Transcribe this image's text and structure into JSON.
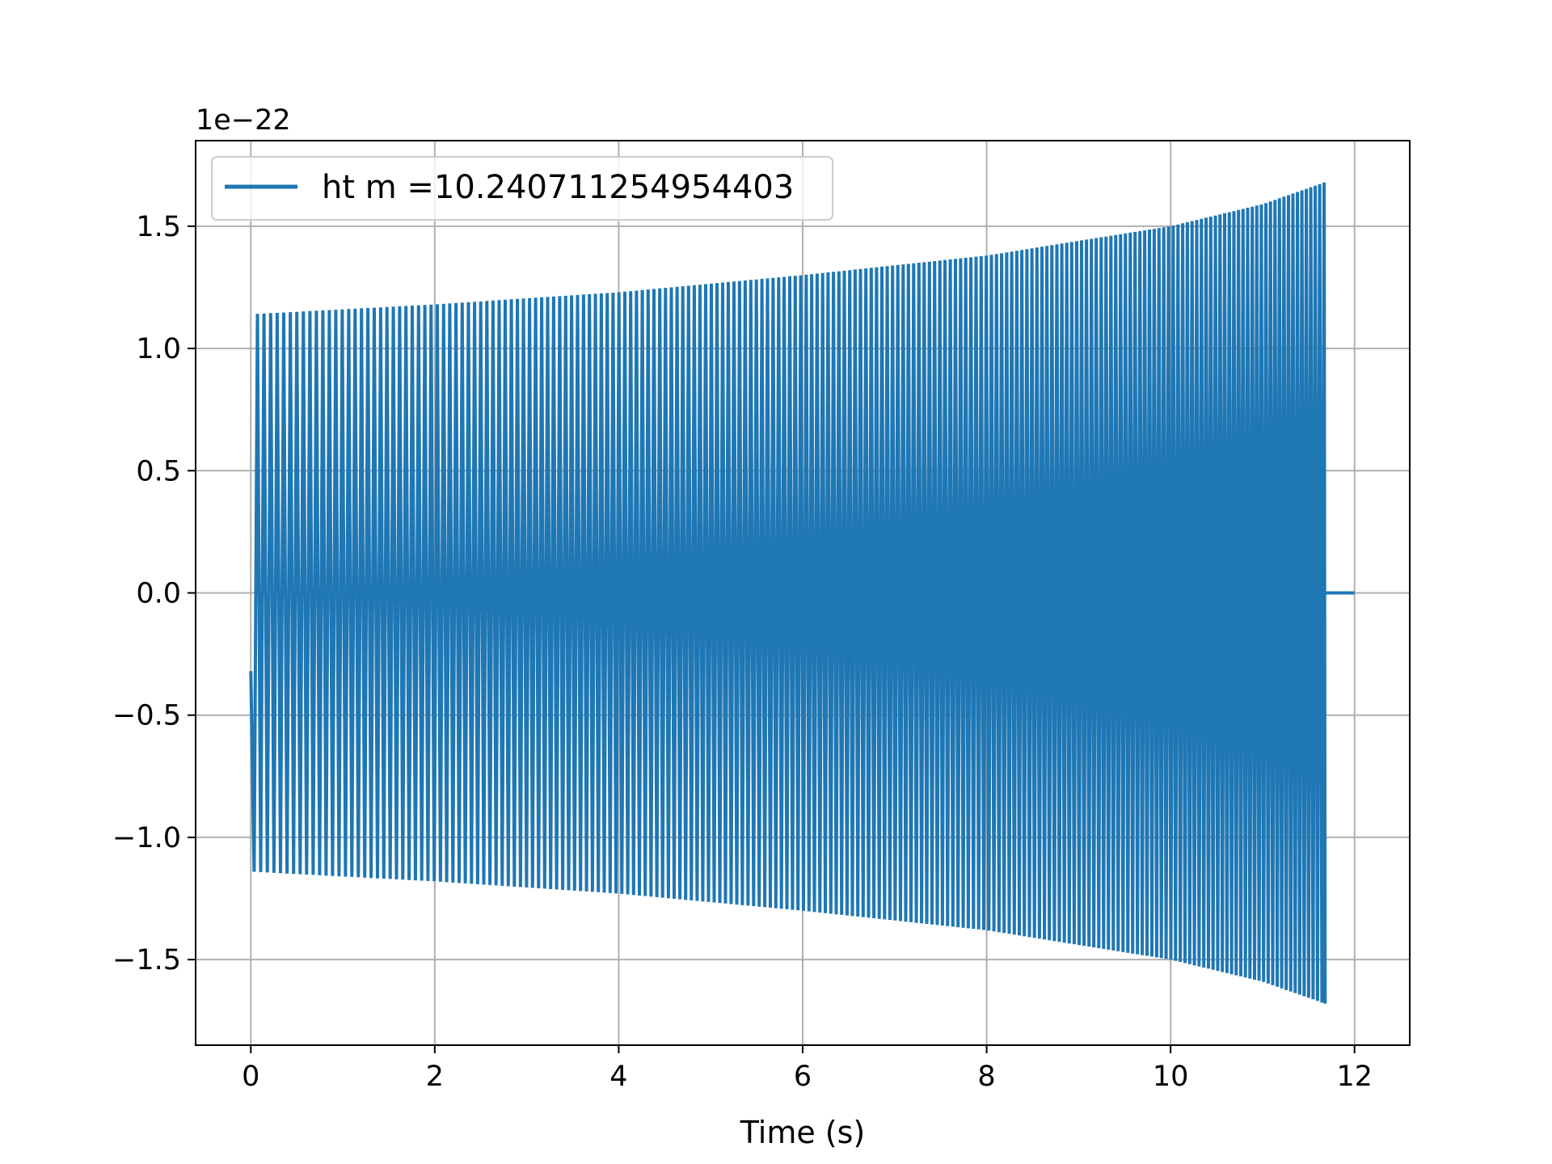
{
  "chart_data": {
    "type": "line",
    "title": "",
    "xlabel": "Time (s)",
    "ylabel": "",
    "y_offset_text": "1e−22",
    "xlim": [
      -0.6,
      12.6
    ],
    "ylim": [
      -1.85,
      1.85
    ],
    "x_ticks": [
      0,
      2,
      4,
      6,
      8,
      10,
      12
    ],
    "x_tick_labels": [
      "0",
      "2",
      "4",
      "6",
      "8",
      "10",
      "12"
    ],
    "y_ticks": [
      -1.5,
      -1.0,
      -0.5,
      0.0,
      0.5,
      1.0,
      1.5
    ],
    "y_tick_labels": [
      "−1.5",
      "−1.0",
      "−0.5",
      "0.0",
      "0.5",
      "1.0",
      "1.5"
    ],
    "grid": true,
    "legend_position": "top-left",
    "series": [
      {
        "name": "ht m =10.240711254954403",
        "color": "#1f77b4",
        "envelope": {
          "description_points_x": [
            0.0,
            2.0,
            4.0,
            6.0,
            8.0,
            10.0,
            11.0,
            11.68
          ],
          "upper": [
            1.14,
            1.18,
            1.23,
            1.3,
            1.38,
            1.5,
            1.59,
            1.68
          ],
          "lower": [
            -1.14,
            -1.18,
            -1.23,
            -1.3,
            -1.38,
            -1.5,
            -1.59,
            -1.68
          ]
        },
        "signal_start": 0.0,
        "signal_end": 11.68,
        "start_value": -0.32,
        "tail": {
          "x": [
            11.68,
            12.0
          ],
          "y": [
            0.0,
            0.0
          ]
        }
      }
    ]
  }
}
